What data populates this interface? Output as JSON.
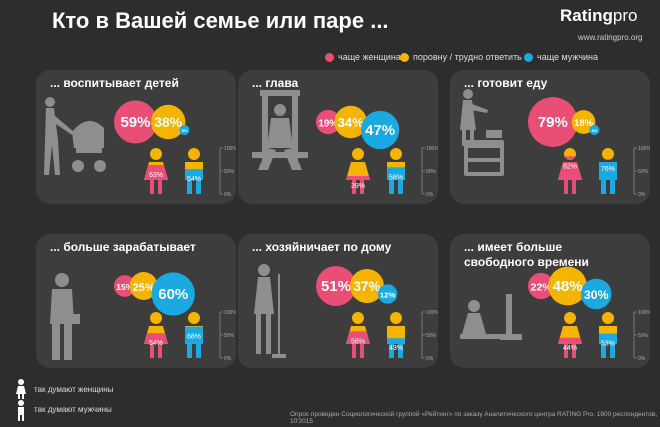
{
  "header": {
    "title": "Кто в Вашей семье или паре ...",
    "logo_main": "Rating",
    "logo_suffix": "pro",
    "site": "www.ratingpro.org"
  },
  "legend": {
    "women": "чаще женщина",
    "equal": "поровну / трудно ответить",
    "men": "чаще мужчина"
  },
  "colors": {
    "women": "#e94e77",
    "equal": "#f5b400",
    "men": "#1aa9e0",
    "silhouette": "#8e8e8e",
    "panel": "#3d3d3d"
  },
  "chart_data": [
    {
      "type": "bubble",
      "title": "... воспитывает детей",
      "categories": [
        "чаще женщина",
        "поровну / трудно ответить",
        "чаще мужчина"
      ],
      "values": [
        59,
        38,
        3
      ],
      "women_think": 63,
      "men_think": 54,
      "icon": "mother-stroller-silhouette"
    },
    {
      "type": "bubble",
      "title": "... глава",
      "categories": [
        "чаще женщина",
        "поровну / трудно ответить",
        "чаще мужчина"
      ],
      "values": [
        19,
        34,
        47
      ],
      "women_think": 39,
      "men_think": 58,
      "icon": "throne-king-silhouette"
    },
    {
      "type": "bubble",
      "title": "... готовит еду",
      "categories": [
        "чаще женщина",
        "поровну / трудно ответить",
        "чаще мужчина"
      ],
      "values": [
        79,
        18,
        3
      ],
      "women_think": 82,
      "men_think": 76,
      "icon": "woman-cooking-silhouette"
    },
    {
      "type": "bubble",
      "title": "... больше зарабатывает",
      "categories": [
        "чаще женщина",
        "поровну / трудно ответить",
        "чаще мужчина"
      ],
      "values": [
        15,
        25,
        60
      ],
      "women_think": 54,
      "men_think": 68,
      "icon": "businessman-silhouette"
    },
    {
      "type": "bubble",
      "title": "... хозяйничает по дому",
      "categories": [
        "чаще женщина",
        "поровну / трудно ответить",
        "чаще мужчина"
      ],
      "values": [
        51,
        37,
        12
      ],
      "women_think": 58,
      "men_think": 43,
      "icon": "woman-with-mop-silhouette"
    },
    {
      "type": "bubble",
      "title": "... имеет больше\nсвободного времени",
      "title_lines": [
        "... имеет больше",
        "свободного времени"
      ],
      "categories": [
        "чаще женщина",
        "поровну / трудно ответить",
        "чаще мужчина"
      ],
      "values": [
        22,
        48,
        30
      ],
      "women_think": 44,
      "men_think": 53,
      "icon": "person-at-computer-silhouette"
    }
  ],
  "scale_labels": [
    "100%",
    "50%",
    "0%"
  ],
  "figure_notes": {
    "women": "так думают женщины",
    "men": "так думают мужчины"
  },
  "footer": "Опрос проведен Социологической группой «Рейтинг» по заказу Аналитического центра RATING Pro, 1800 респондентов, 10'2015"
}
